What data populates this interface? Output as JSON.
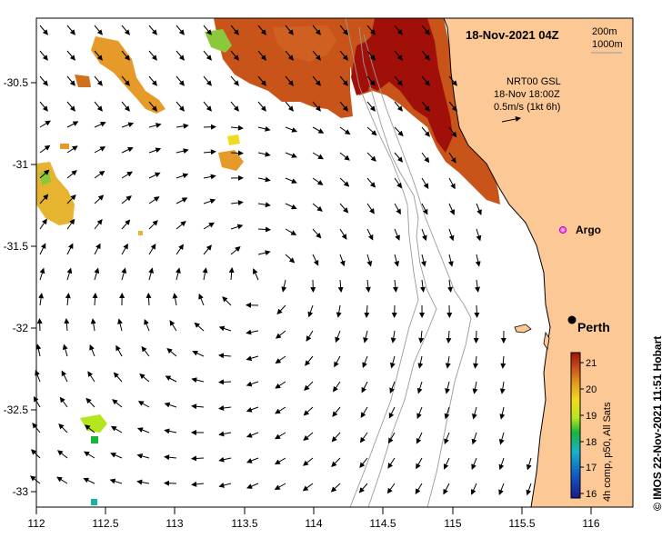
{
  "map": {
    "title": "18-Nov-2021 04Z",
    "isobath_legend": [
      "200m",
      "1000m"
    ],
    "current_info": [
      "NRT00 GSL",
      "18-Nov 18:00Z",
      "0.5m/s (1kt 6h)"
    ],
    "credit": "© IMOS 22-Nov-2021 11:51 Hobart",
    "lon_ticks": [
      "112",
      "112.5",
      "113",
      "113.5",
      "114",
      "114.5",
      "115",
      "115.5",
      "116"
    ],
    "lat_ticks": [
      "-30.5",
      "-31",
      "-31.5",
      "-32",
      "-32.5",
      "-33"
    ],
    "places": [
      {
        "name": "Argo",
        "lon": 115.75,
        "lat": -31.45,
        "marker": "argo-float"
      },
      {
        "name": "Perth",
        "lon": 115.86,
        "lat": -31.95,
        "marker": "city"
      }
    ],
    "colorbar": {
      "label": "4h comp, p50, All Sats",
      "ticks": [
        "16",
        "17",
        "18",
        "19",
        "20",
        "21"
      ],
      "min": 15.8,
      "max": 21.2
    },
    "colors": {
      "land": "#fcc896",
      "coastline": "#000000",
      "isobath": "#9a9a9a",
      "sst_warm": "#c8541a",
      "sst_hot": "#a01008"
    }
  }
}
